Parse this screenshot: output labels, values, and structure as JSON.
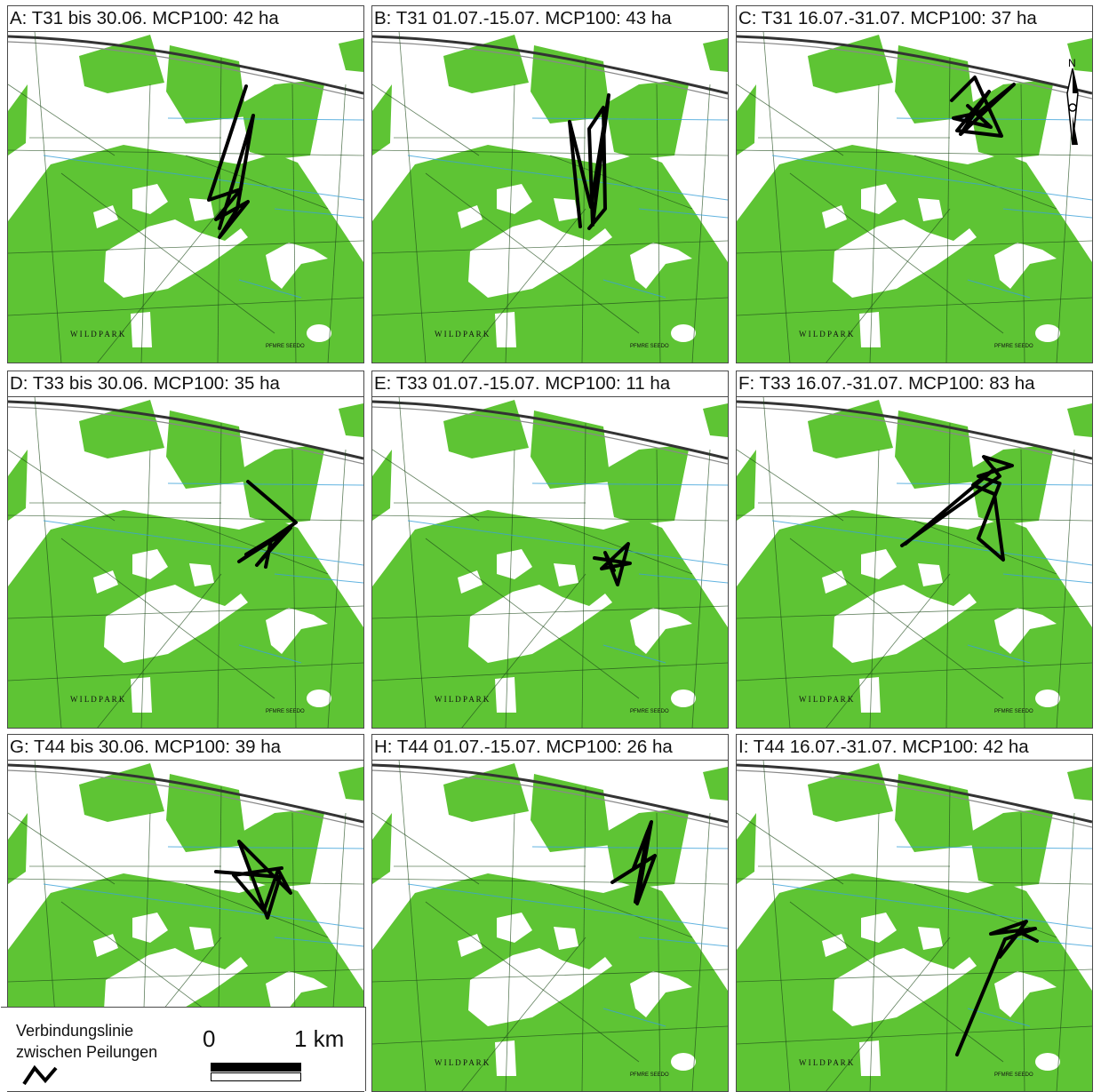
{
  "panels": [
    {
      "title": "A: T31 bis 30.06. MCP100: 42 ha",
      "animal": "T31",
      "period": "bis 30.06.",
      "mcp100_ha": 42,
      "track": [
        [
          268,
          62
        ],
        [
          226,
          190
        ],
        [
          262,
          178
        ],
        [
          234,
          212
        ],
        [
          270,
          192
        ],
        [
          238,
          232
        ],
        [
          258,
          200
        ],
        [
          276,
          95
        ],
        [
          238,
          222
        ]
      ]
    },
    {
      "title": "B: T31 01.07.-15.07. MCP100: 43 ha",
      "animal": "T31",
      "period": "01.07.-15.07.",
      "mcp100_ha": 43,
      "track": [
        [
          234,
          220
        ],
        [
          222,
          102
        ],
        [
          246,
          198
        ],
        [
          266,
          72
        ],
        [
          248,
          218
        ],
        [
          244,
          110
        ],
        [
          260,
          86
        ],
        [
          262,
          200
        ],
        [
          244,
          222
        ]
      ]
    },
    {
      "title": "C: T31 16.07.-31.07. MCP100: 37 ha",
      "animal": "T31",
      "period": "16.07.-31.07.",
      "mcp100_ha": 37,
      "track": [
        [
          242,
          78
        ],
        [
          268,
          52
        ],
        [
          298,
          118
        ],
        [
          248,
          112
        ],
        [
          284,
          68
        ],
        [
          252,
          116
        ],
        [
          312,
          60
        ],
        [
          272,
          92
        ],
        [
          244,
          98
        ],
        [
          286,
          108
        ],
        [
          260,
          84
        ]
      ],
      "north_arrow": true
    },
    {
      "title": "D: T33 bis 30.06. MCP100: 35 ha",
      "animal": "T33",
      "period": "bis 30.06.",
      "mcp100_ha": 35,
      "track": [
        [
          270,
          96
        ],
        [
          324,
          142
        ],
        [
          260,
          186
        ],
        [
          310,
          154
        ],
        [
          280,
          190
        ],
        [
          318,
          148
        ],
        [
          268,
          178
        ],
        [
          296,
          162
        ],
        [
          290,
          192
        ]
      ]
    },
    {
      "title": "E: T33 01.07.-15.07. MCP100: 11 ha",
      "animal": "T33",
      "period": "01.07.-15.07.",
      "mcp100_ha": 11,
      "track": [
        [
          250,
          182
        ],
        [
          290,
          188
        ],
        [
          258,
          194
        ],
        [
          288,
          166
        ],
        [
          276,
          212
        ],
        [
          262,
          176
        ],
        [
          272,
          196
        ]
      ]
    },
    {
      "title": "F: T33 16.07.-31.07. MCP100: 83 ha",
      "animal": "T33",
      "period": "16.07.-31.07.",
      "mcp100_ha": 83,
      "track": [
        [
          186,
          168
        ],
        [
          296,
          90
        ],
        [
          278,
          68
        ],
        [
          310,
          78
        ],
        [
          272,
          90
        ],
        [
          296,
          98
        ],
        [
          272,
          160
        ],
        [
          300,
          184
        ],
        [
          290,
          110
        ],
        [
          266,
          100
        ],
        [
          290,
          82
        ],
        [
          190,
          166
        ]
      ]
    },
    {
      "title": "G: T44 bis 30.06. MCP100: 39 ha",
      "animal": "T44",
      "period": "bis 30.06.",
      "mcp100_ha": 39,
      "track": [
        [
          234,
          126
        ],
        [
          306,
          132
        ],
        [
          292,
          178
        ],
        [
          260,
          92
        ],
        [
          318,
          150
        ],
        [
          304,
          124
        ],
        [
          288,
          170
        ],
        [
          254,
          130
        ],
        [
          308,
          122
        ]
      ]
    },
    {
      "title": "H: T44 01.07.-15.07. MCP100: 26 ha",
      "animal": "T44",
      "period": "01.07.-15.07.",
      "mcp100_ha": 26,
      "track": [
        [
          270,
          138
        ],
        [
          318,
          108
        ],
        [
          298,
          162
        ],
        [
          314,
          70
        ],
        [
          294,
          122
        ],
        [
          310,
          80
        ],
        [
          296,
          160
        ]
      ]
    },
    {
      "title": "I: T44 16.07.-31.07. MCP100: 42 ha",
      "animal": "T44",
      "period": "16.07.-31.07.",
      "mcp100_ha": 42,
      "track": [
        [
          248,
          332
        ],
        [
          302,
          202
        ],
        [
          336,
          190
        ],
        [
          286,
          196
        ],
        [
          326,
          182
        ],
        [
          296,
          222
        ],
        [
          318,
          194
        ],
        [
          338,
          204
        ]
      ]
    }
  ],
  "map_labels": {
    "place": "W I L D P A R K",
    "place_sub": "PFMRE SEEDO"
  },
  "legend": {
    "line1": "Verbindungslinie",
    "line2": "zwischen Peilungen",
    "scale_zero": "0",
    "scale_end": "1 km"
  },
  "north_arrow_label": "N",
  "colors": {
    "forest": "#5ec434",
    "road": "#555555",
    "water": "#3aa0d8",
    "track": "#000000",
    "border": "#4a4a4a"
  }
}
